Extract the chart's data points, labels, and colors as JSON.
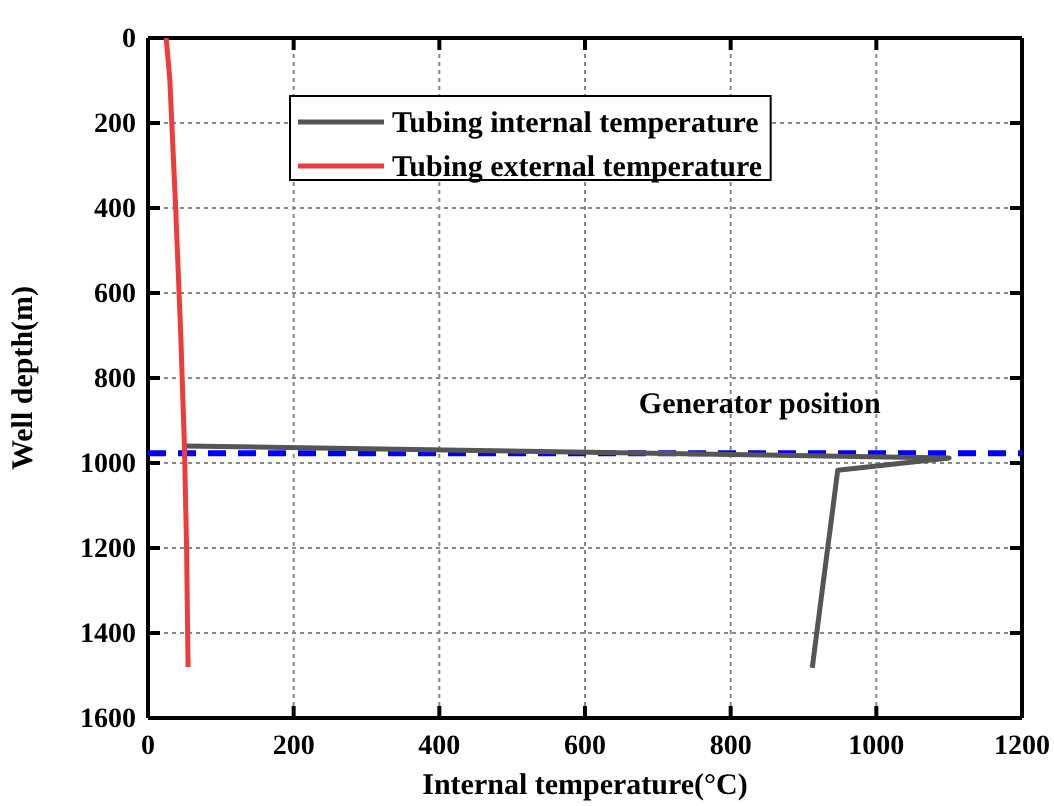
{
  "chart_data": {
    "type": "line",
    "xlabel": "Internal temperature(°C)",
    "ylabel": "Well depth(m)",
    "xlim": [
      0,
      1200
    ],
    "xticks": [
      0,
      200,
      400,
      600,
      800,
      1000,
      1200
    ],
    "ylim": [
      1600,
      0
    ],
    "yticks": [
      0,
      200,
      400,
      600,
      800,
      1000,
      1200,
      1400,
      1600
    ],
    "grid": true,
    "legend": "top",
    "line_style": "solid",
    "marker": "none",
    "series": [
      {
        "name": "Tubing internal temperature",
        "color": "#555555",
        "x": [
          50,
          1100,
          947,
          912
        ],
        "values": [
          960,
          988,
          1017,
          1482
        ]
      },
      {
        "name": "Tubing external temperature",
        "color": "#ee3b3b",
        "x": [
          25,
          30,
          38,
          45,
          50,
          53,
          55
        ],
        "values": [
          0,
          100,
          400,
          700,
          960,
          1200,
          1480
        ]
      }
    ],
    "ref_lines": [
      {
        "axis": "y",
        "value": 977,
        "label": "Generator position",
        "color": "#0000ff",
        "line_style": "dashed"
      }
    ]
  }
}
